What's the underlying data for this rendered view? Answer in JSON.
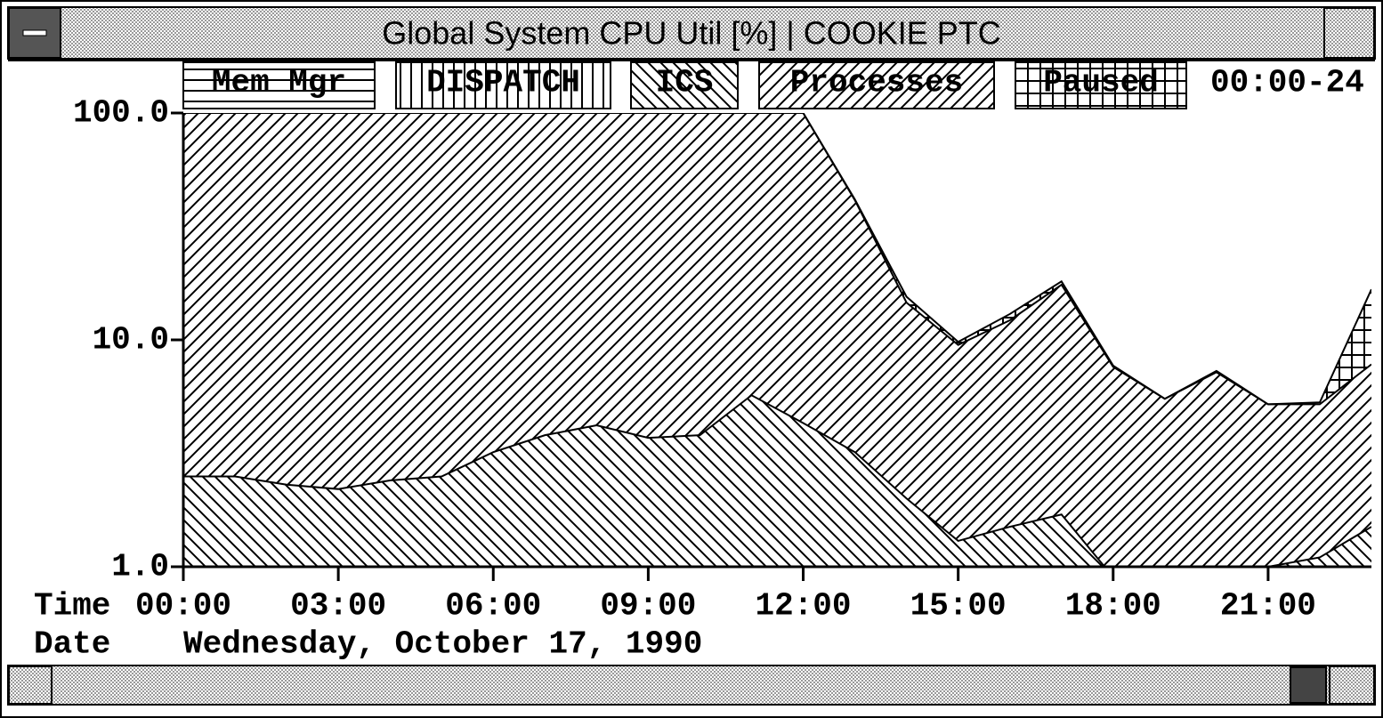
{
  "window": {
    "title": "Global System CPU Util [%] | COOKIE PTC",
    "time_range": "00:00-24",
    "time_label": "Time",
    "date_label": "Date",
    "date": "Wednesday, October 17, 1990"
  },
  "chart_data": {
    "type": "area",
    "stacked": true,
    "log_y": true,
    "x": [
      0,
      1,
      2,
      3,
      4,
      5,
      6,
      7,
      8,
      9,
      10,
      11,
      12,
      13,
      14,
      15,
      16,
      17,
      18,
      19,
      20,
      21,
      22,
      23
    ],
    "xlim": [
      0,
      23
    ],
    "xticks": [
      {
        "value": 0,
        "label": "00:00"
      },
      {
        "value": 3,
        "label": "03:00"
      },
      {
        "value": 6,
        "label": "06:00"
      },
      {
        "value": 9,
        "label": "09:00"
      },
      {
        "value": 12,
        "label": "12:00"
      },
      {
        "value": 15,
        "label": "15:00"
      },
      {
        "value": 18,
        "label": "18:00"
      },
      {
        "value": 21,
        "label": "21:00"
      }
    ],
    "ylim": [
      1,
      100
    ],
    "yticks": [
      {
        "value": 1,
        "label": "1.0"
      },
      {
        "value": 10,
        "label": "10.0"
      },
      {
        "value": 100,
        "label": "100.0"
      }
    ],
    "series": [
      {
        "name": "Mem Mgr",
        "color": "#000000",
        "hatch": "horizontal",
        "values": [
          0,
          0,
          0,
          0,
          0,
          0,
          0,
          0,
          0,
          0,
          0,
          0,
          0,
          0,
          0,
          0,
          0,
          0,
          0,
          0,
          0,
          0,
          0,
          0
        ]
      },
      {
        "name": "DISPATCH",
        "color": "#000000",
        "hatch": "vertical",
        "values": [
          0,
          0,
          0,
          0,
          0,
          0,
          0,
          0,
          0,
          0,
          0,
          0,
          0,
          0,
          0,
          0,
          0,
          0,
          0,
          0,
          0,
          0,
          0,
          0
        ]
      },
      {
        "name": "ICS",
        "color": "#000000",
        "hatch": "backslash",
        "values": [
          2.5,
          2.5,
          2.3,
          2.2,
          2.4,
          2.5,
          3.2,
          3.8,
          4.2,
          3.7,
          3.8,
          5.7,
          4.3,
          3.2,
          2.0,
          1.3,
          1.5,
          1.7,
          0.9,
          0.8,
          0.8,
          1.0,
          1.1,
          1.5
        ]
      },
      {
        "name": "Processes",
        "color": "#000000",
        "hatch": "slash",
        "values": [
          97.5,
          97.5,
          97.7,
          97.8,
          97.6,
          97.5,
          96.8,
          96.2,
          95.8,
          96.3,
          96.2,
          94.3,
          95.7,
          38.1,
          12.6,
          8.2,
          10.7,
          15.8,
          6.7,
          4.7,
          6.4,
          4.2,
          4.1,
          6.3
        ]
      },
      {
        "name": "Paused",
        "color": "#000000",
        "hatch": "grid",
        "values": [
          0,
          0,
          0,
          0,
          0,
          0,
          0,
          0,
          0,
          0,
          0,
          0,
          0,
          0.3,
          0.9,
          0.3,
          0.8,
          0.6,
          0.1,
          0,
          0.1,
          0,
          0.1,
          8.9
        ]
      }
    ]
  }
}
